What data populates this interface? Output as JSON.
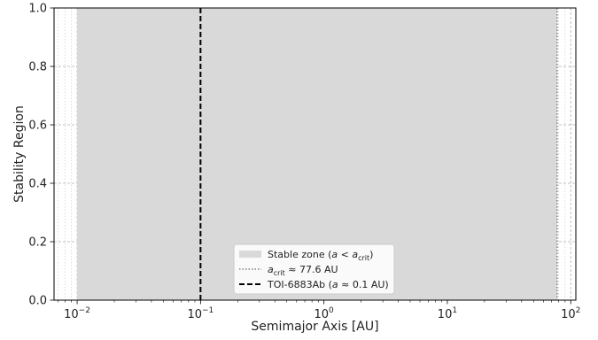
{
  "chart_data": {
    "type": "area",
    "xlabel": "Semimajor Axis [AU]",
    "ylabel": "Stability Region",
    "xscale": "log",
    "xlim": [
      0.0065,
      110
    ],
    "ylim": [
      0.0,
      1.0
    ],
    "x_ticks": [
      {
        "value": 0.01,
        "base": "10",
        "exp": "−2"
      },
      {
        "value": 0.1,
        "base": "10",
        "exp": "−1"
      },
      {
        "value": 1,
        "base": "10",
        "exp": "0"
      },
      {
        "value": 10,
        "base": "10",
        "exp": "1"
      },
      {
        "value": 100,
        "base": "10",
        "exp": "2"
      }
    ],
    "y_ticks": [
      "0.0",
      "0.2",
      "0.4",
      "0.6",
      "0.8",
      "1.0"
    ],
    "grid": true,
    "legend_position": "lower-center",
    "stable_zone": {
      "x_start": 0.01,
      "x_end": 77.6,
      "color": "#d9d9d9"
    },
    "a_crit": {
      "value": 77.6,
      "color": "#808080"
    },
    "planet": {
      "value": 0.1,
      "color": "#000000"
    },
    "legend": [
      {
        "kind": "patch",
        "parts": [
          {
            "t": "Stable zone ("
          },
          {
            "t": "a",
            "style": "italic"
          },
          {
            "t": " < "
          },
          {
            "t": "a",
            "style": "italic"
          },
          {
            "t": "crit",
            "style": "sub"
          },
          {
            "t": ")"
          }
        ]
      },
      {
        "kind": "dotted",
        "parts": [
          {
            "t": "a",
            "style": "italic"
          },
          {
            "t": "crit",
            "style": "sub"
          },
          {
            "t": " ≈ 77.6 AU"
          }
        ]
      },
      {
        "kind": "dashed",
        "parts": [
          {
            "t": "TOI-6883Ab ("
          },
          {
            "t": "a",
            "style": "italic"
          },
          {
            "t": " ≈ 0.1 AU)"
          }
        ]
      }
    ]
  }
}
